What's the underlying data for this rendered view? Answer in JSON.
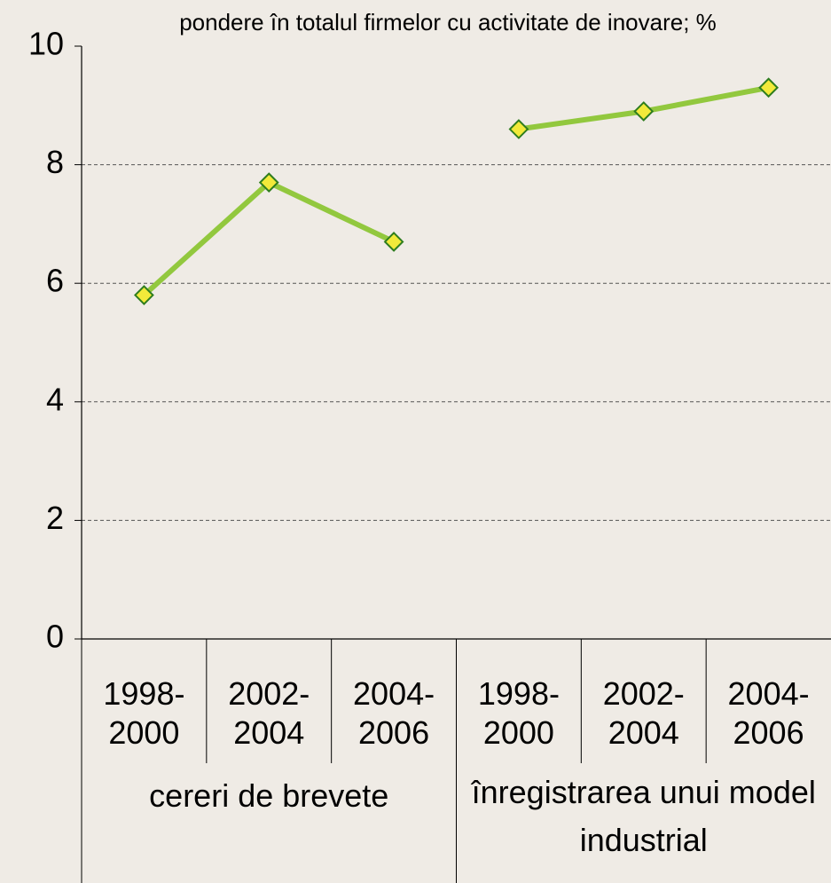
{
  "chart_data": {
    "type": "line",
    "title": "pondere în totalul firmelor cu activitate de inovare; %",
    "groups": [
      {
        "label": "cereri de brevete",
        "categories": [
          "1998-2000",
          "2002-2004",
          "2004-2006"
        ],
        "values": [
          5.8,
          7.7,
          6.7
        ]
      },
      {
        "label": "înregistrarea unui model industrial",
        "categories": [
          "1998-2000",
          "2002-2004",
          "2004-2006"
        ],
        "values": [
          8.6,
          8.9,
          9.3
        ]
      }
    ],
    "color": "#92c83e",
    "marker_color": "#f2ea3a",
    "ylim": [
      0,
      10
    ],
    "yticks": [
      0,
      2,
      4,
      6,
      8,
      10
    ],
    "grid": true
  }
}
